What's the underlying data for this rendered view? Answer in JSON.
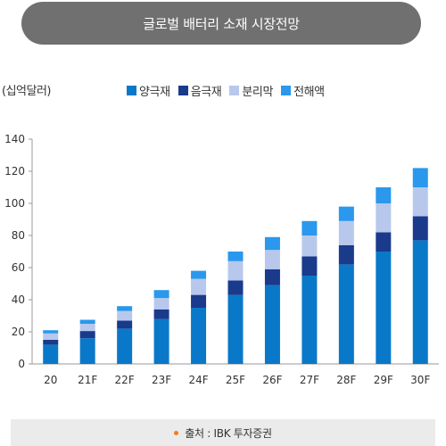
{
  "header": {
    "title": "글로벌 배터리 소재 시장전망"
  },
  "unit_label": "(십억달러)",
  "source": {
    "text": "출처 : IBK 투자증권"
  },
  "colors": {
    "양극재": "#0a78c8",
    "음극재": "#1a3a8c",
    "분리막": "#b8c8ec",
    "전해액": "#2a98ec",
    "axis": "#999999",
    "title_bg": "#707070",
    "source_bg": "#ebebeb",
    "source_dot": "#f47920"
  },
  "chart_data": {
    "type": "bar",
    "stacked": true,
    "categories": [
      "20",
      "21F",
      "22F",
      "23F",
      "24F",
      "25F",
      "26F",
      "27F",
      "28F",
      "29F",
      "30F"
    ],
    "series": [
      {
        "name": "양극재",
        "values": [
          12,
          16,
          22,
          28,
          35,
          43,
          49,
          55,
          62,
          70,
          77
        ]
      },
      {
        "name": "음극재",
        "values": [
          3,
          4.5,
          5,
          6,
          8,
          9,
          10,
          12,
          12,
          12,
          15
        ]
      },
      {
        "name": "분리막",
        "values": [
          4,
          4.5,
          6,
          7,
          10,
          12,
          12,
          13,
          15,
          18,
          18
        ]
      },
      {
        "name": "전해액",
        "values": [
          2,
          2.5,
          3,
          5,
          5,
          6,
          8,
          9,
          9,
          10,
          12
        ]
      }
    ],
    "ylabel": "(십억달러)",
    "ylim": [
      0,
      140
    ],
    "yticks": [
      0,
      20,
      40,
      60,
      80,
      100,
      120,
      140
    ],
    "legend_position": "top",
    "grid": false
  }
}
